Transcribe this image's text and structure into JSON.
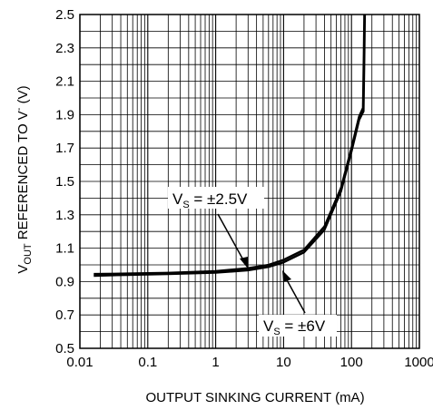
{
  "chart_data": {
    "type": "line",
    "xscale": "log",
    "xlim": [
      0.01,
      1000
    ],
    "ylim": [
      0.5,
      2.5
    ],
    "grid": true,
    "xlabel": "OUTPUT SINKING CURRENT (mA)",
    "ylabel": {
      "main": "V",
      "main_sub": "OUT",
      "rest": " REFERENCED TO V",
      "rest_sup": "-",
      "unit": " (V)"
    },
    "xticks": [
      {
        "value": 0.01,
        "label": "0.01"
      },
      {
        "value": 0.1,
        "label": "0.1"
      },
      {
        "value": 1,
        "label": "1"
      },
      {
        "value": 10,
        "label": "10"
      },
      {
        "value": 100,
        "label": "100"
      },
      {
        "value": 1000,
        "label": "1000"
      }
    ],
    "yticks": [
      {
        "value": 0.5,
        "label": "0.5"
      },
      {
        "value": 0.7,
        "label": "0.7"
      },
      {
        "value": 0.9,
        "label": "0.9"
      },
      {
        "value": 1.1,
        "label": "1.1"
      },
      {
        "value": 1.3,
        "label": "1.3"
      },
      {
        "value": 1.5,
        "label": "1.5"
      },
      {
        "value": 1.7,
        "label": "1.7"
      },
      {
        "value": 1.9,
        "label": "1.9"
      },
      {
        "value": 2.1,
        "label": "2.1"
      },
      {
        "value": 2.3,
        "label": "2.3"
      },
      {
        "value": 2.5,
        "label": "2.5"
      }
    ],
    "series": [
      {
        "label_main": "V",
        "label_sub": "S",
        "label_rest": " = ±2.5V",
        "x": [
          0.016,
          0.05,
          0.2,
          1,
          3,
          6,
          10,
          20,
          40,
          70,
          100,
          130,
          148,
          152,
          155
        ],
        "y": [
          0.945,
          0.948,
          0.952,
          0.962,
          0.98,
          1.0,
          1.03,
          1.09,
          1.23,
          1.46,
          1.7,
          1.89,
          1.94,
          2.25,
          2.5
        ]
      },
      {
        "label_main": "V",
        "label_sub": "S",
        "label_rest": " = ±6V",
        "x": [
          0.016,
          0.05,
          0.2,
          1,
          3,
          6,
          10,
          20,
          40,
          70,
          100,
          130,
          150,
          154,
          157
        ],
        "y": [
          0.935,
          0.94,
          0.945,
          0.953,
          0.968,
          0.988,
          1.015,
          1.075,
          1.21,
          1.44,
          1.68,
          1.87,
          1.92,
          2.2,
          2.5
        ]
      }
    ]
  }
}
